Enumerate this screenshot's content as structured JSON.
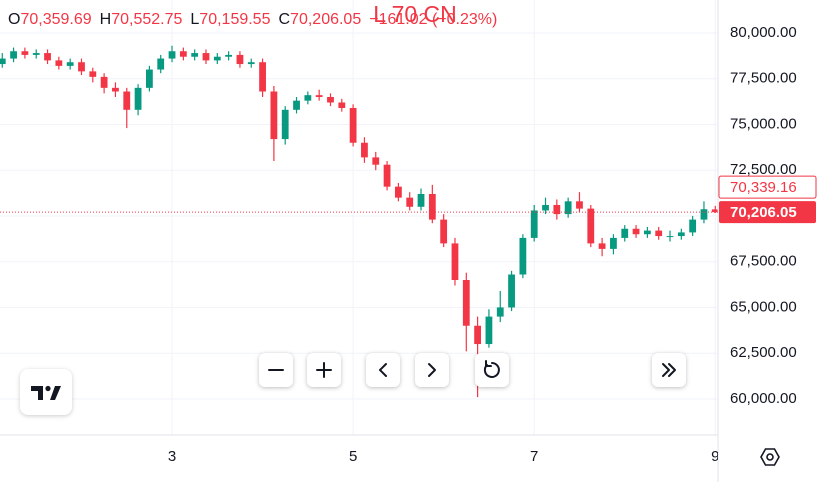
{
  "chart_data": {
    "type": "candlestick",
    "header": {
      "items": [
        {
          "key": "O",
          "label": "70,359.69"
        },
        {
          "key": "H",
          "label": "70,552.75"
        },
        {
          "key": "L",
          "label": "70,159.55"
        },
        {
          "key": "C",
          "label": "70,206.05"
        }
      ],
      "change": "−161.02 (−0.23%)"
    },
    "overlay_text": "L 70 CN",
    "up_color": "#089981",
    "down_color": "#f23645",
    "grid": true,
    "x": [
      1.125,
      1.25,
      1.375,
      1.5,
      1.625,
      1.75,
      1.875,
      2.0,
      2.125,
      2.25,
      2.375,
      2.5,
      2.625,
      2.75,
      2.875,
      3.0,
      3.125,
      3.25,
      3.375,
      3.5,
      3.625,
      3.75,
      3.875,
      4.0,
      4.125,
      4.25,
      4.375,
      4.5,
      4.625,
      4.75,
      4.875,
      5.0,
      5.125,
      5.25,
      5.375,
      5.5,
      5.625,
      5.75,
      5.875,
      6.0,
      6.125,
      6.25,
      6.375,
      6.5,
      6.625,
      6.75,
      6.875,
      7.0,
      7.125,
      7.25,
      7.375,
      7.5,
      7.625,
      7.75,
      7.875,
      8.0,
      8.125,
      8.25,
      8.375,
      8.5,
      8.625,
      8.75,
      8.875,
      9.0
    ],
    "open": [
      78300,
      78600,
      79000,
      78800,
      78900,
      78500,
      78200,
      78400,
      77900,
      77600,
      77000,
      76800,
      75800,
      77000,
      78000,
      78600,
      79000,
      78700,
      78900,
      78500,
      78700,
      78800,
      78300,
      78400,
      76800,
      74200,
      75800,
      76300,
      76600,
      76500,
      76200,
      75900,
      74000,
      73200,
      72800,
      71600,
      71000,
      70500,
      71200,
      69800,
      68500,
      66500,
      64000,
      63000,
      64500,
      65000,
      66800,
      68800,
      70300,
      70600,
      70100,
      70800,
      70400,
      68500,
      68200,
      68800,
      69300,
      69000,
      69200,
      68900,
      68900,
      69100,
      69800,
      70359.69
    ],
    "high": [
      78900,
      79200,
      79200,
      79100,
      79100,
      78700,
      78600,
      78600,
      78100,
      77800,
      77300,
      77000,
      77200,
      78200,
      78800,
      79300,
      79200,
      79100,
      79100,
      78900,
      79000,
      79000,
      78600,
      78600,
      77100,
      76000,
      76500,
      76800,
      76900,
      76700,
      76400,
      76100,
      74300,
      73500,
      73000,
      71800,
      71300,
      71500,
      71700,
      70100,
      68800,
      66900,
      64500,
      64900,
      65900,
      67000,
      69000,
      70600,
      71000,
      70900,
      71000,
      71300,
      70600,
      68800,
      69000,
      69500,
      69500,
      69400,
      69400,
      69200,
      69300,
      70000,
      70800,
      70552.75
    ],
    "low": [
      78100,
      78400,
      78600,
      78600,
      78300,
      78000,
      78000,
      77700,
      77300,
      76700,
      76500,
      74800,
      75500,
      76800,
      77800,
      78400,
      78500,
      78500,
      78300,
      78300,
      78500,
      78100,
      78100,
      76500,
      73000,
      73900,
      75600,
      76100,
      76300,
      76000,
      75700,
      73800,
      72900,
      72500,
      71400,
      70800,
      70300,
      70300,
      69600,
      68300,
      66200,
      62600,
      60100,
      62800,
      64200,
      64800,
      66600,
      68600,
      70100,
      69800,
      69900,
      70200,
      68300,
      67800,
      67900,
      68600,
      68800,
      68800,
      68700,
      68600,
      68700,
      68900,
      69600,
      70159.55
    ],
    "close": [
      78600,
      79000,
      78800,
      78900,
      78500,
      78200,
      78400,
      77900,
      77600,
      77000,
      76800,
      75800,
      77000,
      78000,
      78600,
      79000,
      78700,
      78900,
      78500,
      78700,
      78800,
      78300,
      78400,
      76800,
      74200,
      75800,
      76300,
      76600,
      76500,
      76200,
      75900,
      74000,
      73200,
      72800,
      71600,
      71000,
      70500,
      71200,
      69800,
      68500,
      66500,
      64000,
      63000,
      64500,
      65000,
      66800,
      68800,
      70300,
      70600,
      70100,
      70800,
      70400,
      68500,
      68200,
      68800,
      69300,
      69000,
      69200,
      68900,
      68900,
      69100,
      69800,
      70367.07,
      70206.05
    ],
    "xlim": [
      1.1,
      9.03
    ],
    "xticks": [
      3,
      5,
      7,
      9
    ],
    "ylim": [
      58030,
      81800
    ],
    "yticks": [
      {
        "value": 60000,
        "label": "60,000.00"
      },
      {
        "value": 62500,
        "label": "62,500.00"
      },
      {
        "value": 65000,
        "label": "65,000.00"
      },
      {
        "value": 67500,
        "label": "67,500.00"
      },
      {
        "value": 70000,
        "label": "70,000.00"
      },
      {
        "value": 72500,
        "label": "72,500.00"
      },
      {
        "value": 75000,
        "label": "75,000.00"
      },
      {
        "value": 77500,
        "label": "77,500.00"
      },
      {
        "value": 80000,
        "label": "80,000.00"
      }
    ],
    "price_labels": [
      {
        "value": 70339.16,
        "label": "70,339.16",
        "style": "outline"
      },
      {
        "value": 70206.05,
        "label": "70,206.05",
        "style": "filled"
      }
    ]
  }
}
